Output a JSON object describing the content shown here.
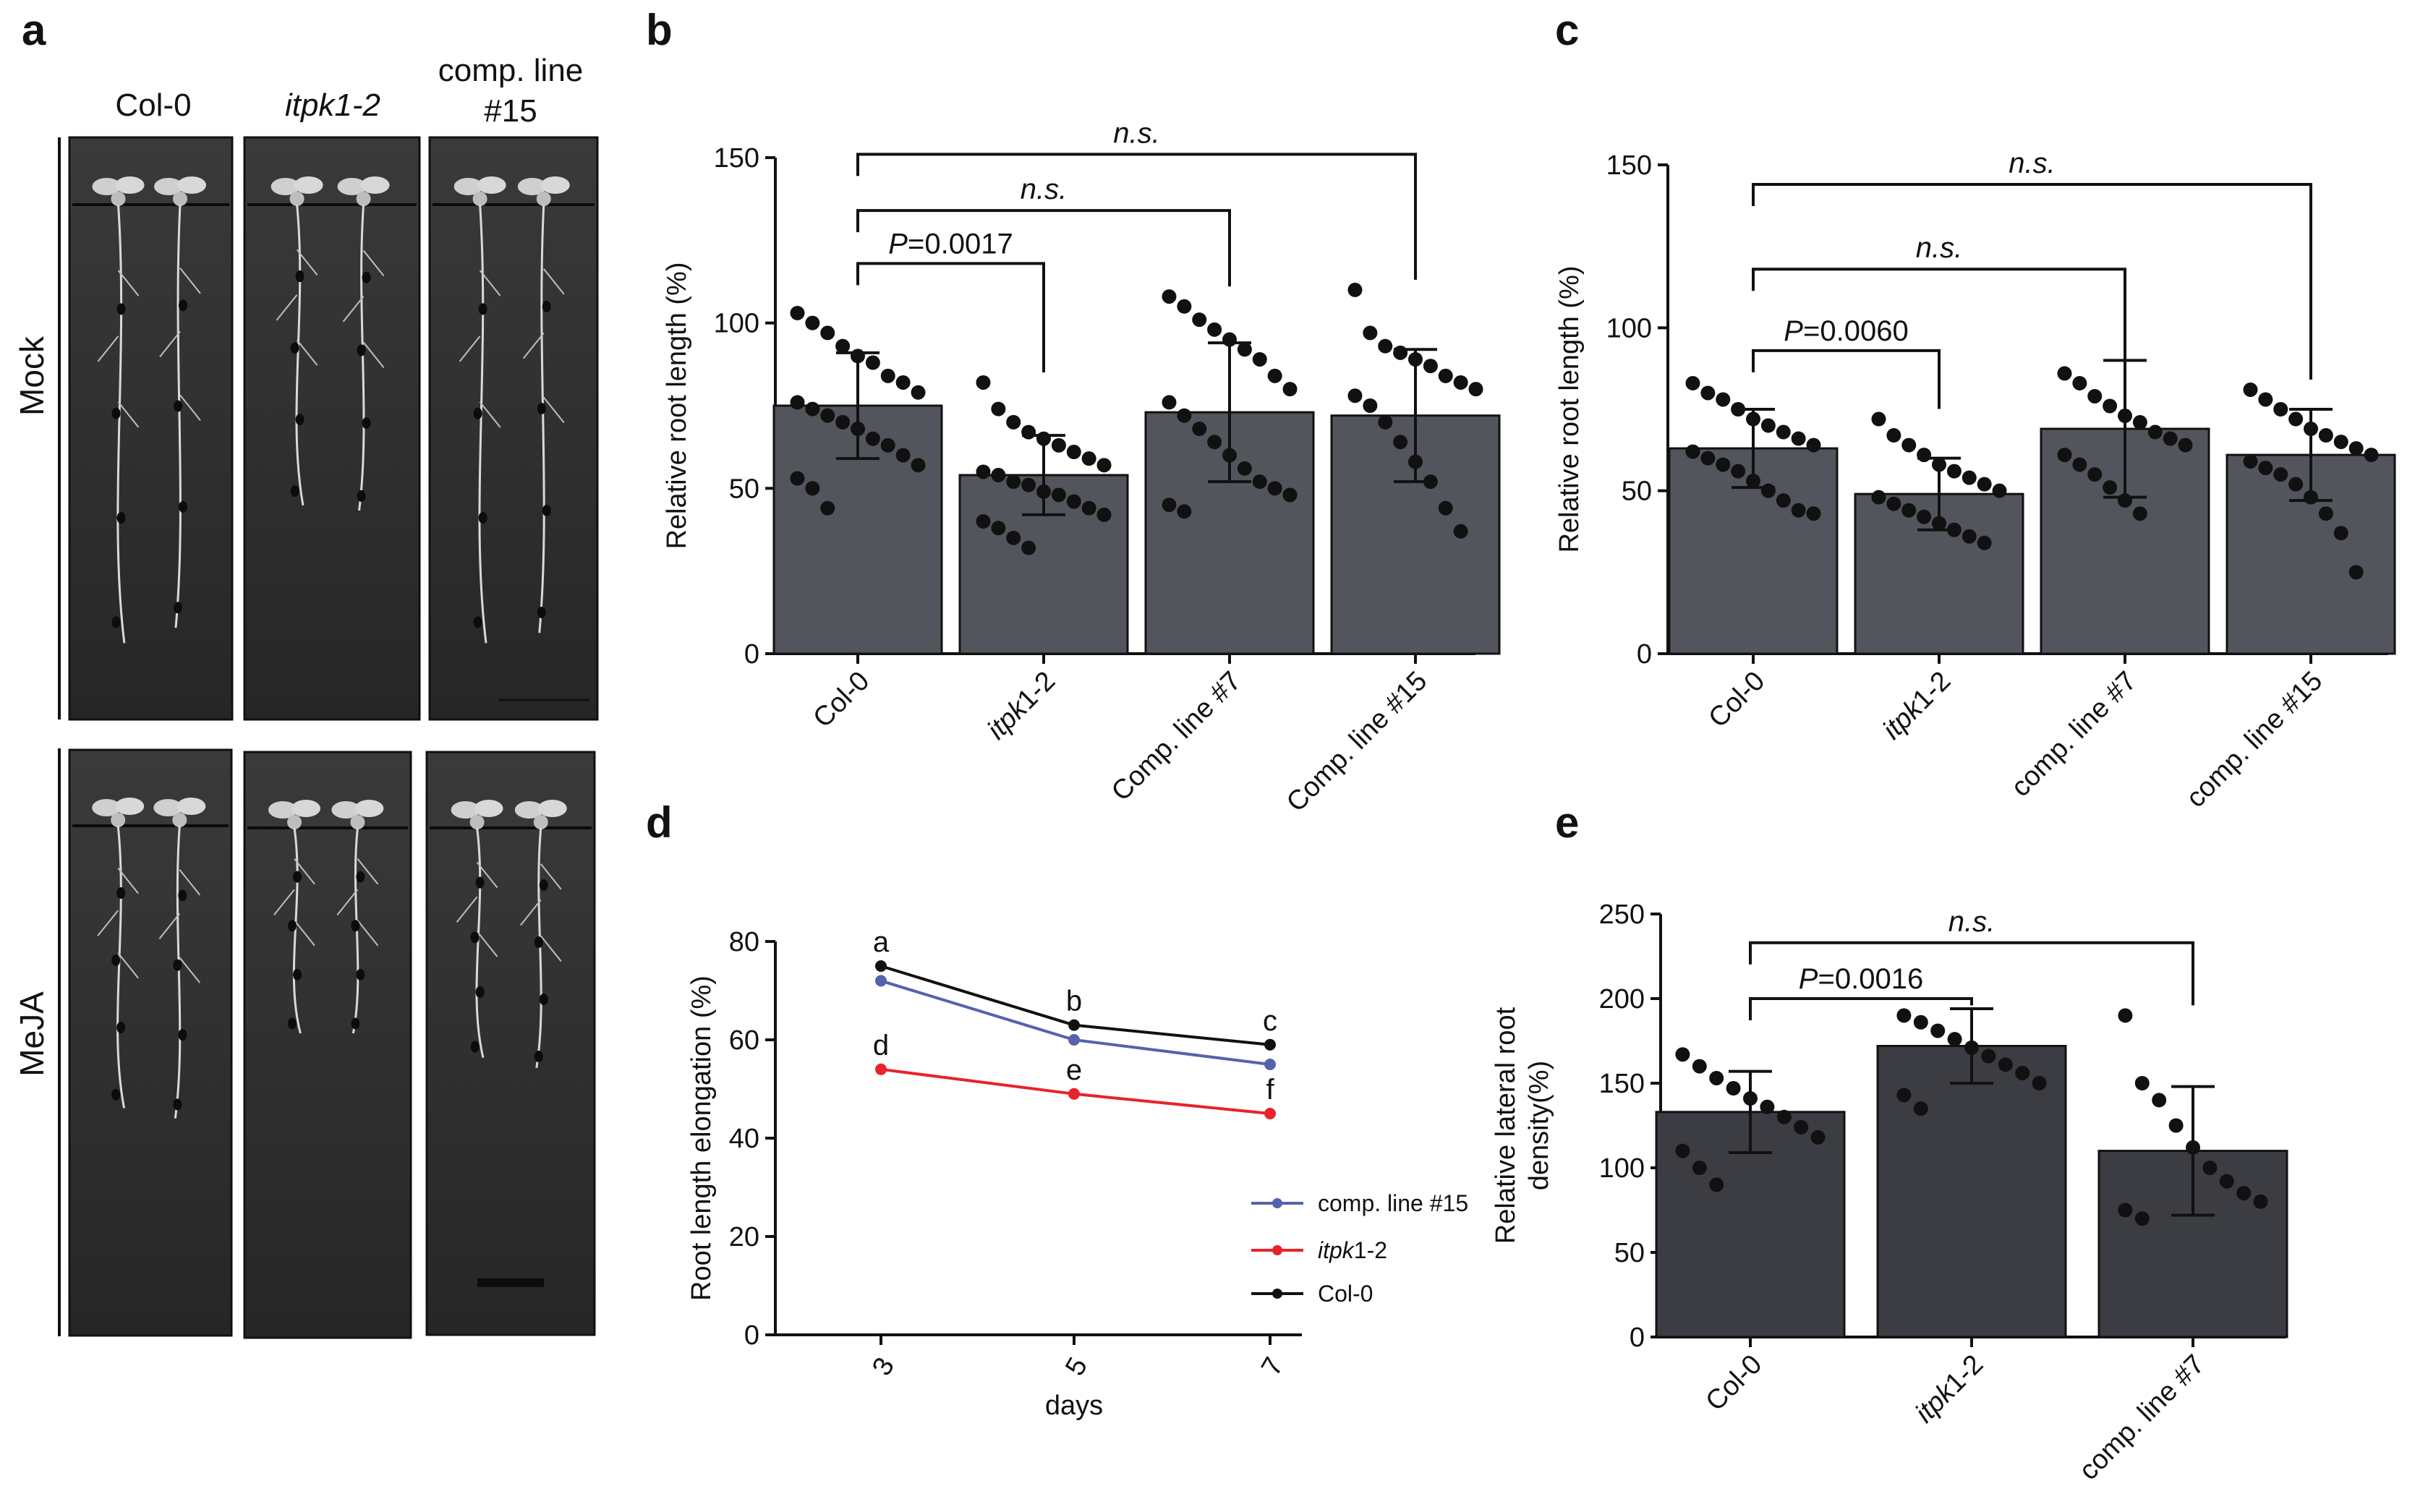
{
  "panel_labels": {
    "a": "a",
    "b": "b",
    "c": "c",
    "d": "d",
    "e": "e"
  },
  "photos": {
    "col_titles": [
      {
        "text": "Col-0",
        "italic": false
      },
      {
        "text": "itpk1-2",
        "italic": true
      },
      {
        "line1": "comp. line",
        "line2": "#15"
      }
    ],
    "rows": [
      "Mock",
      "MeJA"
    ]
  },
  "colors": {
    "bar_b": "#53555c",
    "bar_e": "#3b3d42",
    "dot": "#111111",
    "photo_bg": "#2f2f2f",
    "line_comp15": "#5563ad",
    "line_itpk": "#e8232a",
    "line_col0": "#111111"
  },
  "chart_data": [
    {
      "id": "b",
      "type": "bar",
      "ylabel": "Relative root length (%)",
      "ylim": [
        0,
        150
      ],
      "yticks": [
        0,
        50,
        100,
        150
      ],
      "categories": [
        "Col-0",
        "itpk1-2",
        "Comp. line #7",
        "Comp. line #15"
      ],
      "italic_categories": [
        false,
        true,
        false,
        false
      ],
      "italic_prefix": [
        "",
        "itpk",
        "",
        ""
      ],
      "italic_suffix": [
        "",
        "1-2",
        "",
        ""
      ],
      "values": [
        75,
        54,
        73,
        72
      ],
      "error": [
        16,
        12,
        21,
        20
      ],
      "points": [
        [
          103,
          100,
          97,
          93,
          90,
          88,
          84,
          82,
          79,
          76,
          74,
          72,
          70,
          68,
          65,
          63,
          60,
          57,
          53,
          50,
          44
        ],
        [
          82,
          74,
          70,
          67,
          65,
          63,
          61,
          59,
          57,
          55,
          54,
          52,
          51,
          49,
          48,
          46,
          44,
          42,
          40,
          38,
          35,
          32
        ],
        [
          108,
          105,
          101,
          98,
          95,
          92,
          89,
          84,
          80,
          76,
          72,
          68,
          64,
          60,
          56,
          52,
          50,
          48,
          45,
          43
        ],
        [
          110,
          97,
          93,
          91,
          89,
          87,
          84,
          82,
          80,
          78,
          75,
          70,
          64,
          58,
          52,
          44,
          37
        ]
      ],
      "comparisons": [
        {
          "from": 0,
          "to": 1,
          "label": "P=0.0017",
          "level": 118
        },
        {
          "from": 0,
          "to": 2,
          "label": "n.s.",
          "level": 134
        },
        {
          "from": 0,
          "to": 3,
          "label": "n.s.",
          "level": 151
        }
      ]
    },
    {
      "id": "c",
      "type": "bar",
      "ylabel": "Relative root length (%)",
      "ylim": [
        0,
        150
      ],
      "yticks": [
        0,
        50,
        100,
        150
      ],
      "categories": [
        "Col-0",
        "itpk1-2",
        "comp. line #7",
        "comp. line #15"
      ],
      "italic_categories": [
        false,
        true,
        false,
        false
      ],
      "italic_prefix": [
        "",
        "itpk",
        "",
        ""
      ],
      "italic_suffix": [
        "",
        "1-2",
        "",
        ""
      ],
      "values": [
        63,
        49,
        69,
        61
      ],
      "error": [
        12,
        11,
        21,
        14
      ],
      "points": [
        [
          83,
          80,
          78,
          75,
          72,
          70,
          68,
          66,
          64,
          62,
          60,
          58,
          56,
          53,
          50,
          47,
          44,
          43
        ],
        [
          72,
          67,
          64,
          61,
          58,
          56,
          54,
          52,
          50,
          48,
          46,
          44,
          42,
          40,
          38,
          36,
          34
        ],
        [
          86,
          83,
          79,
          76,
          73,
          71,
          68,
          66,
          64,
          61,
          58,
          55,
          51,
          47,
          43
        ],
        [
          81,
          78,
          75,
          72,
          69,
          67,
          65,
          63,
          61,
          59,
          57,
          55,
          52,
          48,
          43,
          37,
          25
        ]
      ],
      "comparisons": [
        {
          "from": 0,
          "to": 1,
          "label": "P=0.0060",
          "level": 93
        },
        {
          "from": 0,
          "to": 2,
          "label": "n.s.",
          "level": 118
        },
        {
          "from": 0,
          "to": 3,
          "label": "n.s.",
          "level": 144
        }
      ]
    },
    {
      "id": "d",
      "type": "line",
      "xlabel": "days",
      "ylabel": "Root length elongation (%)",
      "x": [
        3,
        5,
        7
      ],
      "ylim": [
        0,
        80
      ],
      "yticks": [
        0,
        20,
        40,
        60,
        80
      ],
      "series": [
        {
          "name": "comp. line #15",
          "values": [
            72,
            60,
            55
          ],
          "color": "#5563ad",
          "letters": [
            "",
            "",
            ""
          ]
        },
        {
          "name": "itpk1-2",
          "values": [
            54,
            49,
            45
          ],
          "color": "#e8232a",
          "letters": [
            "d",
            "e",
            "f"
          ],
          "italic_prefix": "itpk",
          "suffix": "1-2"
        },
        {
          "name": "Col-0",
          "values": [
            75,
            63,
            59
          ],
          "color": "#111111",
          "letters": [
            "a",
            "b",
            "c"
          ]
        }
      ],
      "legend": "lower-right"
    },
    {
      "id": "e",
      "type": "bar",
      "ylabel": "Relative lateral root density(%)",
      "ylabel_line1": "Relative lateral root",
      "ylabel_line2": "density(%)",
      "ylim": [
        0,
        250
      ],
      "yticks": [
        0,
        50,
        100,
        150,
        200,
        250
      ],
      "categories": [
        "Col-0",
        "itpk1-2",
        "comp. line #7"
      ],
      "italic_categories": [
        false,
        true,
        false
      ],
      "italic_prefix": [
        "",
        "itpk",
        ""
      ],
      "italic_suffix": [
        "",
        "1-2",
        ""
      ],
      "values": [
        133,
        172,
        110
      ],
      "error": [
        24,
        22,
        38
      ],
      "points": [
        [
          167,
          160,
          153,
          147,
          141,
          136,
          130,
          124,
          118,
          110,
          100,
          90
        ],
        [
          190,
          186,
          181,
          176,
          171,
          166,
          161,
          156,
          150,
          143,
          135
        ],
        [
          190,
          150,
          140,
          125,
          112,
          100,
          92,
          85,
          80,
          75,
          70
        ]
      ],
      "comparisons": [
        {
          "from": 0,
          "to": 1,
          "label": "P=0.0016",
          "level": 200
        },
        {
          "from": 0,
          "to": 2,
          "label": "n.s.",
          "level": 233
        }
      ]
    }
  ]
}
